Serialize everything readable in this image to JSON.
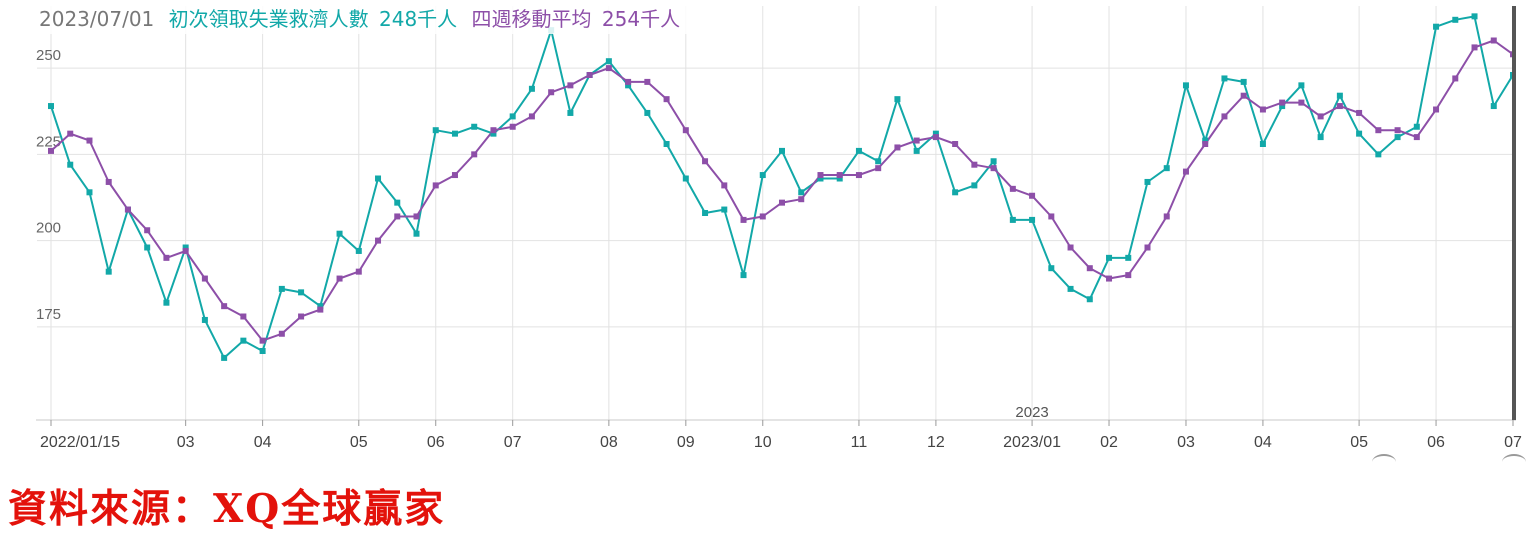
{
  "header": {
    "date": "2023/07/01",
    "series1_label": "初次領取失業救濟人數",
    "series1_value": "248千人",
    "series2_label": "四週移動平均",
    "series2_value": "254千人"
  },
  "source": "資料來源：XQ全球贏家",
  "colors": {
    "series1": "#12a8a8",
    "series2": "#8d4fa8",
    "grid": "#e2e2e2",
    "cursor": "#555555"
  },
  "chart_data": {
    "type": "line",
    "title": "",
    "xlabel": "",
    "ylabel": "",
    "ylim": [
      148,
      268
    ],
    "yticks": [
      175,
      200,
      225,
      250
    ],
    "x_tick_labels": [
      "2022/01/15",
      "03",
      "04",
      "05",
      "06",
      "07",
      "08",
      "09",
      "10",
      "11",
      "12",
      "2023/01",
      "02",
      "03",
      "04",
      "05",
      "06",
      "07"
    ],
    "x_tick_index": [
      0,
      7,
      11,
      16,
      20,
      24,
      29,
      33,
      37,
      42,
      46,
      51,
      55,
      59,
      63,
      68,
      72,
      76
    ],
    "year_marker": "2023",
    "grid": true,
    "series": [
      {
        "name": "初次領取失業救濟人數",
        "values": [
          239,
          222,
          214,
          191,
          209,
          198,
          182,
          198,
          177,
          166,
          171,
          168,
          186,
          185,
          181,
          202,
          197,
          218,
          211,
          202,
          232,
          231,
          233,
          231,
          236,
          244,
          261,
          237,
          248,
          252,
          245,
          237,
          228,
          218,
          208,
          209,
          190,
          219,
          226,
          214,
          218,
          218,
          226,
          223,
          241,
          226,
          231,
          214,
          216,
          223,
          206,
          206,
          192,
          186,
          183,
          195,
          195,
          217,
          221,
          245,
          229,
          247,
          246,
          228,
          239,
          245,
          230,
          242,
          231,
          225,
          230,
          233,
          262,
          264,
          265,
          239,
          248
        ]
      },
      {
        "name": "四週移動平均",
        "values": [
          226,
          231,
          229,
          217,
          209,
          203,
          195,
          197,
          189,
          181,
          178,
          171,
          173,
          178,
          180,
          189,
          191,
          200,
          207,
          207,
          216,
          219,
          225,
          232,
          233,
          236,
          243,
          245,
          248,
          250,
          246,
          246,
          241,
          232,
          223,
          216,
          206,
          207,
          211,
          212,
          219,
          219,
          219,
          221,
          227,
          229,
          230,
          228,
          222,
          221,
          215,
          213,
          207,
          198,
          192,
          189,
          190,
          198,
          207,
          220,
          228,
          236,
          242,
          238,
          240,
          240,
          236,
          239,
          237,
          232,
          232,
          230,
          238,
          247,
          256,
          258,
          254
        ]
      }
    ]
  }
}
